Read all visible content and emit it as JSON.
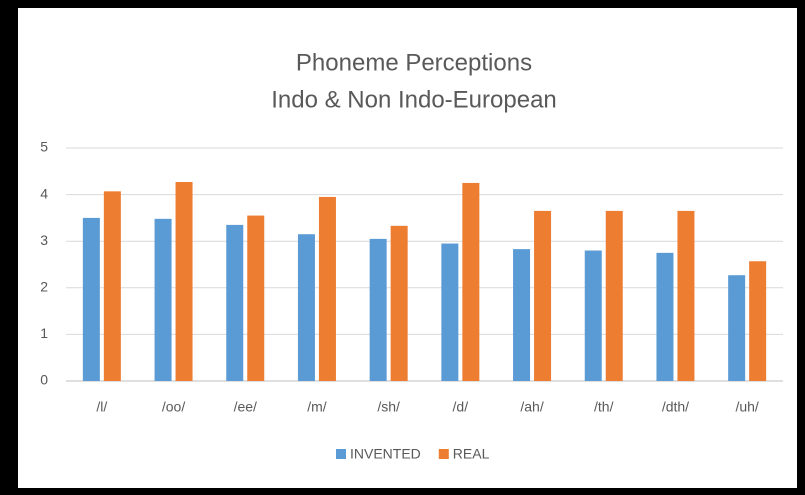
{
  "chart_data": {
    "type": "bar",
    "title": "Phoneme Perceptions",
    "subtitle": "Indo & Non Indo-European",
    "categories": [
      "/l/",
      "/oo/",
      "/ee/",
      "/m/",
      "/sh/",
      "/d/",
      "/ah/",
      "/th/",
      "/dth/",
      "/uh/"
    ],
    "series": [
      {
        "name": "INVENTED",
        "color": "#5b9bd5",
        "values": [
          3.5,
          3.48,
          3.35,
          3.15,
          3.05,
          2.95,
          2.83,
          2.8,
          2.75,
          2.27
        ]
      },
      {
        "name": "REAL",
        "color": "#ed7d31",
        "values": [
          4.07,
          4.27,
          3.55,
          3.95,
          3.33,
          4.25,
          3.65,
          3.65,
          3.65,
          2.57
        ]
      }
    ],
    "ylim": [
      0,
      5
    ],
    "yticks": [
      0,
      1,
      2,
      3,
      4,
      5
    ],
    "grid": true,
    "legend": "bottom"
  }
}
